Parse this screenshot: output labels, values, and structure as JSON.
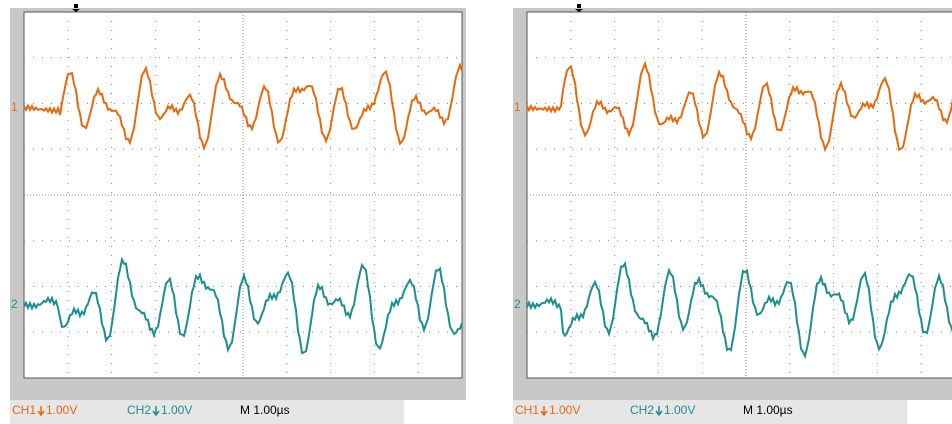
{
  "panels": [
    {
      "markers": [
        "1",
        "2"
      ],
      "status": {
        "ch1": "CH1",
        "ch1_scale": "1.00V",
        "ch2": "CH2",
        "ch2_scale": "1.00V",
        "timebase": "M 1.00µs"
      }
    },
    {
      "markers": [
        "1",
        "2"
      ],
      "status": {
        "ch1": "CH1",
        "ch1_scale": "1.00V",
        "ch2": "CH2",
        "ch2_scale": "1.00V",
        "timebase": "M 1.00µs"
      }
    }
  ]
}
